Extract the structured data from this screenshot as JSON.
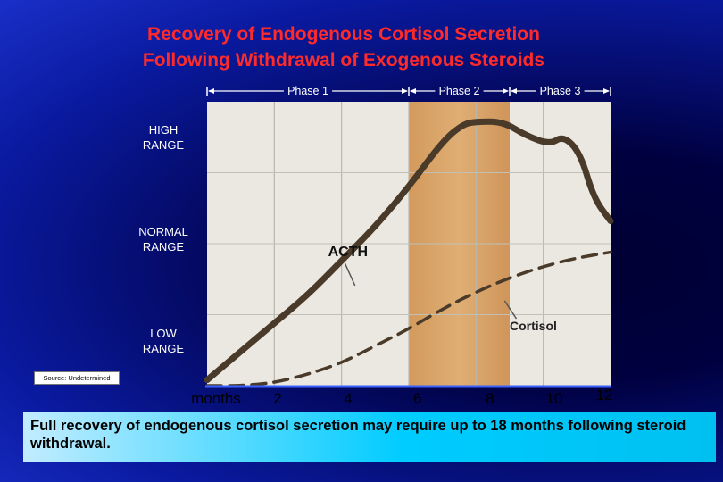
{
  "title": {
    "line1": "Recovery of Endogenous Cortisol Secretion",
    "line2": "Following Withdrawal of Exogenous Steroids"
  },
  "source_label": "Source: Undetermined",
  "caption": "Full recovery of endogenous cortisol secretion may require up to 18 months following steroid withdrawal.",
  "colors": {
    "title": "#ff2a2a",
    "background": "#0a1aa0",
    "plot_paper": "#eae8e0",
    "phase2_band": "#d9a56a",
    "curve": "#4a3a2a",
    "caption_box": "#00ccff"
  },
  "chart_data": {
    "type": "line",
    "xlabel": "months",
    "x_ticks": [
      "2",
      "4",
      "6",
      "8",
      "10",
      "12"
    ],
    "xlim": [
      0,
      12
    ],
    "y_range_labels": [
      "HIGH\nRANGE",
      "NORMAL\nRANGE",
      "LOW\nRANGE"
    ],
    "phases": [
      {
        "name": "Phase 1",
        "start": 0,
        "end": 6
      },
      {
        "name": "Phase 2",
        "start": 6,
        "end": 9
      },
      {
        "name": "Phase 3",
        "start": 9,
        "end": 12
      }
    ],
    "highlight_band": [
      6,
      9
    ],
    "grid": true,
    "series": [
      {
        "name": "ACTH",
        "label": "ACTH",
        "style": "solid",
        "points": [
          [
            0,
            0.02
          ],
          [
            1,
            0.12
          ],
          [
            2,
            0.22
          ],
          [
            3,
            0.32
          ],
          [
            4,
            0.44
          ],
          [
            5,
            0.56
          ],
          [
            6,
            0.7
          ],
          [
            7,
            0.86
          ],
          [
            7.6,
            0.92
          ],
          [
            8,
            0.93
          ],
          [
            8.8,
            0.93
          ],
          [
            9.5,
            0.88
          ],
          [
            10.2,
            0.85
          ],
          [
            10.6,
            0.88
          ],
          [
            11.1,
            0.82
          ],
          [
            11.5,
            0.66
          ],
          [
            12,
            0.58
          ]
        ]
      },
      {
        "name": "Cortisol",
        "label": "Cortisol",
        "style": "dashed",
        "points": [
          [
            0,
            0.0
          ],
          [
            1,
            0.0
          ],
          [
            2,
            0.01
          ],
          [
            3,
            0.04
          ],
          [
            4,
            0.08
          ],
          [
            5,
            0.14
          ],
          [
            6,
            0.2
          ],
          [
            7,
            0.27
          ],
          [
            8,
            0.33
          ],
          [
            9,
            0.38
          ],
          [
            10,
            0.42
          ],
          [
            11,
            0.45
          ],
          [
            12,
            0.47
          ]
        ]
      }
    ]
  }
}
